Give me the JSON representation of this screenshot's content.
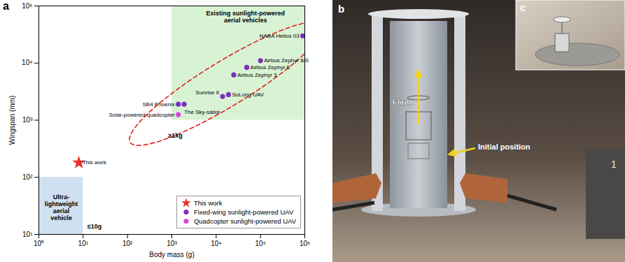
{
  "chart_data": {
    "type": "scatter",
    "panel_label": "a",
    "x_label": "Body mass (g)",
    "y_label": "Wingspan (mm)",
    "log": true,
    "xlim": [
      1,
      1000000
    ],
    "ylim": [
      10,
      100000
    ],
    "xticks": [
      {
        "value": 1,
        "label": "10⁰"
      },
      {
        "value": 10,
        "label": "10¹"
      },
      {
        "value": 100,
        "label": "10²"
      },
      {
        "value": 1000,
        "label": "10³"
      },
      {
        "value": 10000,
        "label": "10⁴"
      },
      {
        "value": 100000,
        "label": "10⁵"
      },
      {
        "value": 1000000,
        "label": "10⁶"
      }
    ],
    "yticks": [
      {
        "value": 10,
        "label": "10¹"
      },
      {
        "value": 100,
        "label": "10²"
      },
      {
        "value": 1000,
        "label": "10³"
      },
      {
        "value": 10000,
        "label": "10⁴"
      },
      {
        "value": 100000,
        "label": "10⁵"
      }
    ],
    "legend": "lower right",
    "series": [
      {
        "name": "This work",
        "color": "#e8312a",
        "marker": "star",
        "x": [
          8
        ],
        "values": [
          180
        ],
        "labels": [
          "This work"
        ]
      },
      {
        "name": "Fixed-wing sunlight-powered UAV",
        "color": "#7b2fbe",
        "marker": "circle",
        "x": [
          900000,
          100000,
          49000,
          25000,
          19000,
          14000,
          1400,
          1900
        ],
        "values": [
          30000,
          11000,
          8400,
          6200,
          2800,
          2600,
          1900,
          1900
        ],
        "labels": [
          "NASA Helios 03",
          "Airbus Zephyr 8/S",
          "Airbus Zephyr 6",
          "Airbus Zephyr 3",
          "SoLong UAV",
          "Sunrise II",
          "SB4 Phoenix",
          "The Sky-sailor"
        ]
      },
      {
        "name": "Quadcopter sunlight-powered UAV",
        "color": "#e040e0",
        "marker": "circle",
        "x": [
          1400
        ],
        "values": [
          1250
        ],
        "labels": [
          "Solar-powered quadcopter"
        ]
      }
    ],
    "regions": [
      {
        "x": [
          1000,
          1000000
        ],
        "y": [
          1000,
          100000
        ],
        "color": "#d8f3d3"
      },
      {
        "x": [
          1,
          10
        ],
        "y": [
          10,
          100
        ],
        "color": "#cfe0f1"
      }
    ],
    "annotations": [
      {
        "text": "Existing sunlight-powered\naerial vehicles",
        "x": 46000,
        "y": 65000
      },
      {
        "text": "≥1kg",
        "x": 1200,
        "y": 540
      },
      {
        "text": "Ultra-\nlightweight\naerial\nvehicle",
        "x": 3.2,
        "y": 30
      },
      {
        "text": "≤10g",
        "x": 18,
        "y": 14
      }
    ]
  },
  "photo": {
    "panel_label": "b",
    "annotations": [
      "Flight",
      "Initial position"
    ],
    "scale_mark": "1",
    "inset_label": "c"
  }
}
